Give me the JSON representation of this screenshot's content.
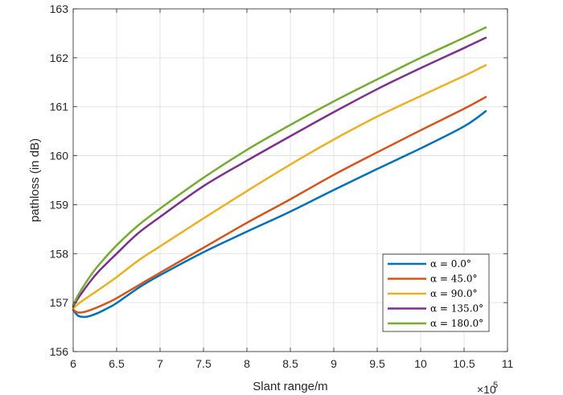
{
  "chart_data": {
    "type": "line",
    "title": "",
    "xlabel": "Slant range/m",
    "ylabel": "pathloss (in dB)",
    "x_exponent_label": "×10",
    "x_exponent_power": "5",
    "xlim": [
      6,
      11
    ],
    "ylim": [
      156,
      163
    ],
    "xticks": [
      6,
      6.5,
      7,
      7.5,
      8,
      8.5,
      9,
      9.5,
      10,
      10.5,
      11
    ],
    "xtick_labels": [
      "6",
      "6.5",
      "7",
      "7.5",
      "8",
      "8.5",
      "9",
      "9.5",
      "10",
      "10.5",
      "11"
    ],
    "yticks": [
      156,
      157,
      158,
      159,
      160,
      161,
      162,
      163
    ],
    "ytick_labels": [
      "156",
      "157",
      "158",
      "159",
      "160",
      "161",
      "162",
      "163"
    ],
    "grid": true,
    "legend_position": "bottom-right",
    "series": [
      {
        "name": "α = 0.0°",
        "color": "#0072BD",
        "x": [
          6.0,
          6.05,
          6.1,
          6.15,
          6.2,
          6.3,
          6.4,
          6.5,
          6.75,
          7.0,
          7.5,
          8.0,
          8.5,
          9.0,
          9.5,
          10.0,
          10.5,
          10.75
        ],
        "y": [
          156.85,
          156.74,
          156.71,
          156.71,
          156.73,
          156.8,
          156.89,
          156.99,
          157.3,
          157.56,
          158.03,
          158.45,
          158.86,
          159.3,
          159.73,
          160.15,
          160.6,
          160.91
        ]
      },
      {
        "name": "α = 45.0°",
        "color": "#D95319",
        "x": [
          6.0,
          6.05,
          6.1,
          6.15,
          6.2,
          6.3,
          6.4,
          6.5,
          6.75,
          7.0,
          7.5,
          8.0,
          8.5,
          9.0,
          9.5,
          10.0,
          10.5,
          10.75
        ],
        "y": [
          156.85,
          156.8,
          156.8,
          156.82,
          156.85,
          156.92,
          157.0,
          157.09,
          157.35,
          157.61,
          158.12,
          158.63,
          159.11,
          159.61,
          160.07,
          160.52,
          160.96,
          161.2
        ]
      },
      {
        "name": "α = 90.0°",
        "color": "#EDB120",
        "x": [
          6.0,
          6.05,
          6.1,
          6.2,
          6.3,
          6.5,
          6.75,
          7.0,
          7.5,
          8.0,
          8.5,
          9.0,
          9.5,
          10.0,
          10.5,
          10.75
        ],
        "y": [
          156.88,
          156.96,
          157.03,
          157.15,
          157.27,
          157.52,
          157.86,
          158.15,
          158.72,
          159.28,
          159.82,
          160.33,
          160.8,
          161.22,
          161.63,
          161.85
        ]
      },
      {
        "name": "α = 135.0°",
        "color": "#7E2F8E",
        "x": [
          6.0,
          6.05,
          6.1,
          6.2,
          6.3,
          6.5,
          6.75,
          7.0,
          7.5,
          8.0,
          8.5,
          9.0,
          9.5,
          10.0,
          10.5,
          10.75
        ],
        "y": [
          156.92,
          157.07,
          157.2,
          157.44,
          157.65,
          158.0,
          158.42,
          158.75,
          159.38,
          159.9,
          160.4,
          160.89,
          161.36,
          161.79,
          162.2,
          162.41
        ]
      },
      {
        "name": "α = 180.0°",
        "color": "#77AC30",
        "x": [
          6.0,
          6.05,
          6.1,
          6.2,
          6.3,
          6.5,
          6.75,
          7.0,
          7.5,
          8.0,
          8.5,
          9.0,
          9.5,
          10.0,
          10.5,
          10.75
        ],
        "y": [
          156.95,
          157.13,
          157.28,
          157.55,
          157.78,
          158.17,
          158.58,
          158.92,
          159.55,
          160.12,
          160.63,
          161.11,
          161.56,
          162.0,
          162.41,
          162.62
        ]
      }
    ]
  }
}
